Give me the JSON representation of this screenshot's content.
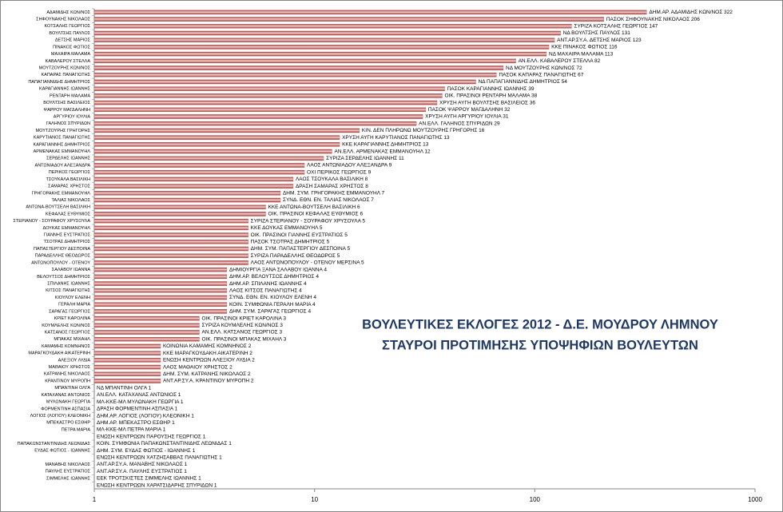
{
  "chart_data": {
    "type": "bar",
    "orientation": "horizontal",
    "log_x": true,
    "title": [
      "ΒΟΥΛΕΥΤΙΚΕΣ ΕΚΛΟΓΕΣ 2012 - Δ.Ε. ΜΟΥΔΡΟΥ ΛΗΜΝΟΥ",
      "ΣΤΑΥΡΟΙ ΠΡΟΤΙΜΗΣΗΣ ΥΠΟΨΗΦΙΩΝ ΒΟΥΛΕΥΤΩΝ"
    ],
    "color": "#c0504d",
    "xlim": [
      1,
      1000
    ],
    "xticks": [
      1,
      10,
      100,
      1000
    ],
    "categories": [
      "ΑΔΑΜΙΔΗΣ ΚΩΝ/ΝΟΣ",
      "ΣΗΦΟΥΝΑΚΗΣ ΝΙΚΟΛΑΟΣ",
      "ΚΟΤΣΑΛΗΣ ΓΕΩΡΓΙΟΣ",
      "ΒΟΥΛΤΣΗΣ ΠΑΥΛΟΣ",
      "ΔΕΤΣΗΣ ΜΑΡΙΟΣ",
      "ΠΙΝΑΚΟΣ ΦΩΤΙΟΣ",
      "ΜΑΧΑΙΡΑ ΜΑΛΑΜΑ",
      "ΚΑΒΑΛΕΡΟΥ ΣΤΕΛΛΑ",
      "ΜΟΥΤΖΟΥΡΗΣ ΚΩΝ/ΝΟΣ",
      "ΚΑΠΑΡΑΣ ΠΑΝΑΓΙΩΤΗΣ",
      "ΠΑΠΑΓΙΑΝΝΙΔΗΣ ΔΗΜΗΤΡΙΟΣ",
      "ΚΑΡΑΓΙΑΝΝΗΣ ΙΩΑΝΝΗΣ",
      "ΡΕΝΤΑΡΗ ΜΑΛΑΜΑ",
      "ΒΟΥΛΤΣΗΣ ΒΑΣΙΛΕΙΟΣ",
      "ΨΑΡΡΟΥ ΜΑΓΔΑΛΗΝΗ",
      "ΑΡΓΥΡΙΟΥ ΙΟΥΛΙΑ",
      "ΓΑΛΗΝΟΣ ΣΠΥΡΙΔΩΝ",
      "ΜΟΥΤΖΟΥΡΗΣ ΓΡΗΓΟΡΗΣ",
      "ΚΑΡΥΤΙΑΝΟΣ ΠΑΝΑΓΙΩΤΗΣ",
      "ΚΑΡΑΓΙΑΝΝΗΣ ΔΗΜΗΤΡΙΟΣ",
      "ΑΡΜΕΝΑΚΑΣ ΕΜΜΑΝΟΥΗΛ",
      "ΣΕΡΔΕΛΗΣ ΙΩΑΝΝΗΣ",
      "ΑΝΤΩΝΙΑΔΟΥ ΑΛΕΞΑΝΔΡΑ",
      "ΠΕΡΙΚΟΣ ΓΕΩΡΓΙΟΣ",
      "ΤΣΟΥΚΑΛΑ ΒΑΣΙΛΙΚΗ",
      "ΣΑΜΑΡΑΣ ΧΡΗΣΤΟΣ",
      "ΓΡΗΓΟΡΑΚΗΣ ΕΜΜΑΝΟΥΗΛ",
      "ΤΑΛΙΑΣ ΝΙΚΟΛΑΟΣ",
      "ΑΝΤΩΝΑ-ΒΟΥΤΣΕΛΗ ΒΑΣΙΛΙΚΗ",
      "ΚΕΦΑΛΑΣ ΕΥΘΥΜΙΟΣ",
      "ΣΤΕΡΙΑΝΟΥ - ΣΟΥΡΑΦΟΥ ΧΡΥΣΟΥΛΑ",
      "ΔΟΥΚΑΣ ΕΜΜΑΝΟΥΗΛ",
      "ΓΙΑΝΝΗΣ ΕΥΣΤΡΑΤΙΟΣ",
      "ΤΣΟΤΡΑΣ ΔΗΜΗΤΡΙΟΣ",
      "ΠΑΠΑΣΤΕΡΓΙΟΥ ΔΕΣΠΟΙΝΑ",
      "ΠΑΡΑΔΕΛΛΗΣ ΘΕΟΔΩΡΟΣ",
      "ΑΝΤΩΝΟΠΟΥΛΟΥ - ΟΤΕΝΟΥ",
      "ΣΑΛΑΒΟΥ ΙΩΑΝΝΑ",
      "ΒΕΛΟΥΤΣΟΣ ΔΗΜΗΤΡΙΟΣ",
      "ΣΠΙΛΑΝΗΣ ΙΩΑΝΝΗΣ",
      "ΚΙΤΣΟΣ ΠΑΝΑΓΙΩΤΗΣ",
      "ΚΙΟΥΛΟΥ ΕΛΕΝΗ",
      "ΓΕΡΑΛΗ ΜΑΡΙΑ",
      "ΣΑΡΑΓΑΣ ΓΕΩΡΓΙΟΣ",
      "ΚΡΙΕΤ ΚΑΡΟΛΙΝΑ",
      "ΚΟΥΜΛΕΛΗΣ ΚΩΝ/ΝΟΣ",
      "ΚΑΤΣΑΝΟΣ ΓΕΩΡΓΙΟΣ",
      "ΜΠΑΚΑΣ ΜΙΧΑΗΛ",
      "ΚΑΜΑΜΗΣ ΚΟΜΝΗΝΟΣ",
      "ΜΑΡΑΓΚΟΥΔΑΚΗ ΑΙΚΑΤΕΡΙΝΗ",
      "ΑΛΕΞΙΟΥ ΛΥΔΙΑ",
      "ΜΑΘΑΙΟΥ ΧΡΗΣΤΟΣ",
      "ΚΑΤΡΑΝΗΣ ΝΙΚΟΛΑΟΣ",
      "ΚΡΑΝΤΙΝΟΥ ΜΥΡΟΠΗ",
      "ΜΠΑΝΤΙΝΗ ΟΛΓΑ",
      "ΚΑΤΑΧΑΝΑΣ ΑΝΤΩΝΙΟΣ",
      "ΜΥΛΩΝΑΚΗ ΓΕΩΡΓΙΑ",
      "ΦΟΡΜΕΝΤΙΝΗ ΑΣΠΑΣΙΑ",
      "ΛΟΓΙΟΣ (ΛΟΓΙΟΥ) ΚΛΕΟΝΙΚΗ",
      "ΜΠΕΚΑΣΤΡΟ ΕΣΘΗΡ",
      "ΠΕΤΡΑ ΜΑΡΙΑ",
      null,
      "ΠΑΠΑΚΩΝΣΤΑΝΤΙΝΙΔΗΣ ΛΕΩΝΙΔΑΣ",
      "ΕΥΔΑΣ ΦΩΤΙΟΣ - ΙΩΑΝΝΗΣ",
      null,
      "ΜΑΝΑΒΗΣ ΝΙΚΟΛΑΟΣ",
      "ΠΑΥΛΗΣ ΕΥΣΤΡΑΤΙΟΣ",
      "ΣΙΜΜΕΛΗΣ ΙΩΑΝΝΗΣ",
      null
    ],
    "values": [
      322,
      206,
      147,
      131,
      123,
      116,
      113,
      82,
      72,
      67,
      54,
      39,
      38,
      36,
      32,
      31,
      29,
      16,
      13,
      13,
      12,
      11,
      9,
      9,
      8,
      8,
      7,
      7,
      6,
      6,
      5,
      5,
      5,
      5,
      5,
      5,
      5,
      4,
      4,
      4,
      4,
      4,
      4,
      4,
      3,
      3,
      3,
      3,
      2,
      2,
      2,
      2,
      2,
      2,
      1,
      1,
      1,
      1,
      1,
      1,
      1,
      1,
      1,
      1,
      1,
      1,
      1,
      1,
      1
    ],
    "value_labels": [
      "ΔΗΜ.ΑΡ. ΑΔΑΜΙΔΗΣ ΚΩΝ/ΝΟΣ 322",
      "ΠΑΣΟΚ ΣΗΦΟΥΝΑΚΗΣ ΝΙΚΟΛΑΟΣ 206",
      "ΣΥΡΙΖΑ ΚΟΤΣΑΛΗΣ ΓΕΩΡΓΙΟΣ 147",
      "ΝΔ ΒΟΥΛΤΣΗΣ ΠΑΥΛΟΣ 131",
      "ΑΝΤ.ΑΡ.ΣΥ.Α. ΔΕΤΣΗΣ ΜΑΡΙΟΣ 123",
      "ΚΚΕ ΠΙΝΑΚΟΣ ΦΩΤΙΟΣ 116",
      "ΝΔ ΜΑΧΑΙΡΑ ΜΑΛΑΜΑ 113",
      "ΑΝ.ΕΛΛ. ΚΑΒΑΛΕΡΟΥ ΣΤΕΛΛΑ 82",
      "ΝΔ ΜΟΥΤΖΟΥΡΗΣ ΚΩΝ/ΝΟΣ 72",
      "ΠΑΣΟΚ ΚΑΠΑΡΑΣ ΠΑΝΑΓΙΩΤΗΣ 67",
      "ΝΔ ΠΑΠΑΓΙΑΝΝΙΔΗΣ ΔΗΜΗΤΡΙΟΣ 54",
      "ΠΑΣΟΚ ΚΑΡΑΓΙΑΝΝΗΣ ΙΩΑΝΝΗΣ 39",
      "ΟΙΚ. ΠΡΑΣΙΝΟΙ ΡΕΝΤΑΡΗ ΜΑΛΑΜΑ 38",
      "ΧΡΥΣΗ ΑΥΓΗ ΒΟΥΛΤΣΗΣ ΒΑΣΙΛΕΙΟΣ 36",
      "ΠΑΣΟΚ ΨΑΡΡΟΥ ΜΑΓΔΑΛΗΝΗ 32",
      "ΧΡΥΣΗ ΑΥΓΗ ΑΡΓΥΡΙΟΥ ΙΟΥΛΙΑ 31",
      "ΑΝ.ΕΛΛ. ΓΑΛΗΝΟΣ ΣΠΥΡΙΔΩΝ 29",
      "ΚΙΝ. ΔΕΝ ΠΛΗΡΩΝΩ ΜΟΥΤΖΟΥΡΗΣ ΓΡΗΓΟΡΗΣ 16",
      "ΧΡΥΣΗ ΑΥΓΗ ΚΑΡΥΤΙΑΝΟΣ ΠΑΝΑΓΙΩΤΗΣ 13",
      "ΚΚΕ ΚΑΡΑΓΙΑΝΝΗΣ ΔΗΜΗΤΡΙΟΣ 13",
      "ΑΝ.ΕΛΛ. ΑΡΜΕΝΑΚΑΣ ΕΜΜΑΝΟΥΗΛ 12",
      "ΣΥΡΙΖΑ ΣΕΡΔΕΛΗΣ ΙΩΑΝΝΗΣ 11",
      "ΛΑΟΣ ΑΝΤΩΝΙΑΔΟΥ ΑΛΕΞΑΝΔΡΑ 9",
      "ΟΧΙ ΠΕΡΙΚΟΣ ΓΕΩΡΓΙΟΣ 9",
      "ΛΑΟΣ ΤΣΟΥΚΑΛΑ ΒΑΣΙΛΙΚΗ 8",
      "ΔΡΑΣΗ ΣΑΜΑΡΑΣ ΧΡΗΣΤΟΣ 8",
      "ΔΗΜ. ΣΥΜ. ΓΡΗΓΟΡΑΚΗΣ ΕΜΜΑΝΟΥΗΛ 7",
      "ΣΥΝΔ. ΕΘΝ. ΕΝ. ΤΑΛΙΑΣ ΝΙΚΟΛΑΟΣ 7",
      "ΚΚΕ ΑΝΤΩΝΑ-ΒΟΥΤΣΕΛΗ ΒΑΣΙΛΙΚΗ 6",
      "ΟΙΚ. ΠΡΑΣΙΝΟΙ ΚΕΦΑΛΑΣ ΕΥΘΥΜΙΟΣ 6",
      "ΣΥΡΙΖΑ ΣΤΕΡΙΑΝΟΥ - ΣΟΥΡΑΦΟΥ ΧΡΥΣΟΥΛΑ 5",
      "ΚΚΕ ΔΟΥΚΑΣ ΕΜΜΑΝΟΥΗΛ 5",
      "ΟΙΚ. ΠΡΑΣΙΝΟΙ ΓΙΑΝΝΗΣ ΕΥΣΤΡΑΤΙΟΣ 5",
      "ΠΑΣΟΚ ΤΣΟΤΡΑΣ ΔΗΜΗΤΡΙΟΣ 5",
      "ΔΗΜ. ΣΥΜ. ΠΑΠΑΣΤΕΡΓΙΟΥ ΔΕΣΠΟΙΝΑ 5",
      "ΣΥΡΙΖΑ ΠΑΡΑΔΕΛΛΗΣ ΘΕΟΔΩΡΟΣ 5",
      "ΛΑΟΣ ΑΝΤΩΝΟΠΟΥΛΟΥ - ΟΤΕΝΟΥ ΜΕΡΣΙΝΑ 5",
      "ΔΗΜΙΟΥΡΓΙΑ ΞΑΝΑ ΣΑΛΑΒΟΥ ΙΩΑΝΝΑ 4",
      "ΔΗΜ.ΑΡ. ΒΕΛΟΥΤΣΟΣ ΔΗΜΗΤΡΙΟΣ 4",
      "ΔΗΜ.ΑΡ. ΣΠΙΛΑΝΗΣ ΙΩΑΝΝΗΣ 4",
      "ΛΑΟΣ ΚΙΤΣΟΣ ΠΑΝΑΓΙΩΤΗΣ 4",
      "ΣΥΝΔ. ΕΘΝ. ΕΝ. ΚΙΟΥΛΟΥ ΕΛΕΝΗ 4",
      "ΚΟΙΝ. ΣΥΜΦΩΝΙΑ ΓΕΡΑΛΗ ΜΑΡΙΑ 4",
      "ΔΗΜ. ΣΥΜ. ΣΑΡΑΓΑΣ ΓΕΩΡΓΙΟΣ 4",
      "ΟΙΚ. ΠΡΑΣΙΝΟΙ ΚΡΙΕΤ ΚΑΡΟΛΙΝΑ 3",
      "ΣΥΡΙΖΑ ΚΟΥΜΛΕΛΗΣ ΚΩΝ/ΝΟΣ 3",
      "ΑΝ.ΕΛΛ. ΚΑΤΣΑΝΟΣ ΓΕΩΡΓΙΟΣ 3",
      "ΟΙΚ. ΠΡΑΣΙΝΟΙ ΜΠΑΚΑΣ ΜΙΧΑΗΛ 3",
      "ΚΟΙΝΩΝΙΑ ΚΑΜΑΜΗΣ ΚΟΜΝΗΝΟΣ 2",
      "ΚΚΕ ΜΑΡΑΓΚΟΥΔΑΚΗ ΑΙΚΑΤΕΡΙΝΗ 2",
      "ΕΝΩΣΗ ΚΕΝΤΡΩΩΝ ΑΛΕΞΙΟΥ ΛΥΔΙΑ 2",
      "ΛΑΟΣ ΜΑΘΑΙΟΥ ΧΡΗΣΤΟΣ 2",
      "ΔΗΜ. ΣΥΜ. ΚΑΤΡΑΝΗΣ ΝΙΚΟΛΑΟΣ 2",
      "ΑΝΤ.ΑΡ.ΣΥ.Α. ΚΡΑΝΤΙΝΟΥ ΜΥΡΟΠΗ 2",
      "ΝΔ ΜΠΑΝΤΙΝΗ ΟΛΓΑ 1",
      "ΑΝ.ΕΛΛ. ΚΑΤΑΧΑΝΑΣ ΑΝΤΩΝΙΟΣ 1",
      "ΜΛ-ΚΚΕ-ΜΛ ΜΥΛΩΝΑΚΗ ΓΕΩΡΓΙΑ 1",
      "ΔΡΑΣΗ ΦΟΡΜΕΝΤΙΝΗ ΑΣΠΑΣΙΑ 1",
      "ΔΗΜ.ΑΡ. ΛΟΓΙΟΣ (ΛΟΓΙΟΥ) ΚΛΕΟΝΙΚΗ 1",
      "ΔΗΜ.ΑΡ. ΜΠΕΚΑΣΤΡΟ ΕΣΘΗΡ 1",
      "ΜΛ-ΚΚΕ-ΜΛ ΠΕΤΡΑ ΜΑΡΙΑ 1",
      "ΕΝΩΣΗ ΚΕΝΤΡΩΩΝ ΠΑΡΟΥΣΗΣ ΓΕΩΡΓΙΟΣ 1",
      "ΚΟΙΝ. ΣΥΜΦΩΝΙΑ ΠΑΠΑΚΩΝΣΤΑΝΤΙΝΙΔΗΣ ΛΕΩΝΙΔΑΣ 1",
      "ΔΗΜ. ΣΥΜ. ΕΥΔΑΣ ΦΩΤΙΟΣ - ΙΩΑΝΝΗΣ 1",
      "ΕΝΩΣΗ ΚΕΝΤΡΩΩΝ ΧΑΤΖΗΣΑΒΒΑΣ ΠΑΝΑΓΙΩΤΗΣ 1",
      "ΑΝΤ.ΑΡ.ΣΥ.Α. ΜΑΝΑΒΗΣ ΝΙΚΟΛΑΟΣ 1",
      "ΑΝΤ.ΑΡ.ΣΥ.Α. ΠΑΥΛΗΣ ΕΥΣΤΡΑΤΙΟΣ 1",
      "ΕΕΚ ΤΡΟΤΣΚΙΣΤΕΣ ΣΙΜΜΕΛΗΣ ΙΩΑΝΝΗΣ 1",
      "ΕΝΩΣΗ ΚΕΝΤΡΩΩΝ ΧΑΡΑΤΣΙΔΑΡΗΣ ΣΠΥΡΙΔΩΝ 1"
    ]
  }
}
